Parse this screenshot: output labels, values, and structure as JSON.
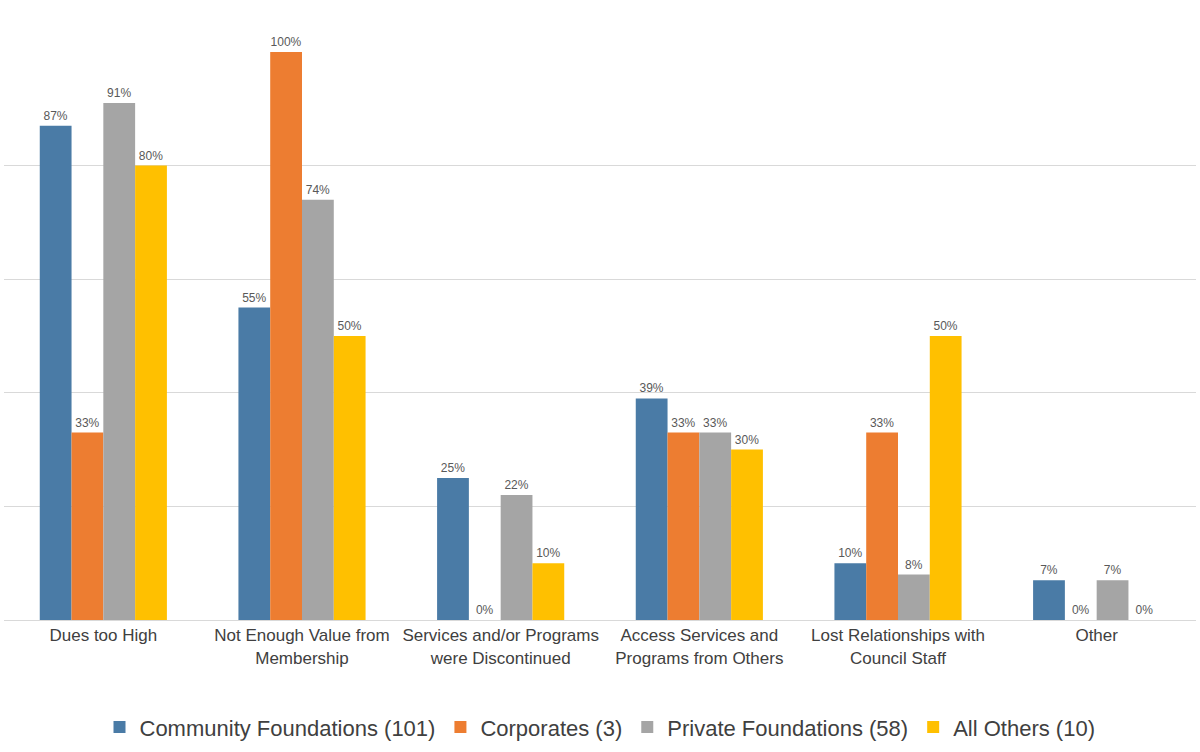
{
  "chart_data": {
    "type": "bar",
    "categories": [
      "Dues too High",
      "Not Enough Value from Membership",
      "Services and/or Programs were Discontinued",
      "Access Services and Programs from Others",
      "Lost Relationships with Council Staff",
      "Other"
    ],
    "series": [
      {
        "name": "Community Foundations (101)",
        "color": "#4a7ba6",
        "values": [
          87,
          55,
          25,
          39,
          10,
          7
        ],
        "value_labels": [
          "87%",
          "55%",
          "25%",
          "39%",
          "10%",
          "7%"
        ]
      },
      {
        "name": "Corporates (3)",
        "color": "#ed7d31",
        "values": [
          33,
          100,
          0,
          33,
          33,
          0
        ],
        "value_labels": [
          "33%",
          "100%",
          "0%",
          "33%",
          "33%",
          "0%"
        ]
      },
      {
        "name": "Private Foundations (58)",
        "color": "#a5a5a5",
        "values": [
          91,
          74,
          22,
          33,
          8,
          7
        ],
        "value_labels": [
          "91%",
          "74%",
          "22%",
          "33%",
          "8%",
          "7%"
        ]
      },
      {
        "name": "All Others (10)",
        "color": "#ffc000",
        "values": [
          80,
          50,
          10,
          30,
          50,
          0
        ],
        "value_labels": [
          "80%",
          "50%",
          "10%",
          "30%",
          "50%",
          "0%"
        ]
      }
    ],
    "ylim": [
      0,
      100
    ],
    "yticks": [
      0,
      20,
      40,
      60,
      80,
      100
    ],
    "grid": true,
    "legend": "bottom",
    "data_labels": true,
    "tick_labels": "x"
  }
}
